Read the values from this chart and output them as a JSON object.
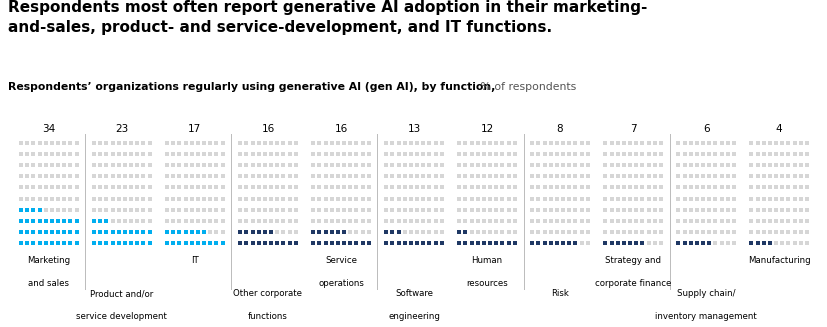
{
  "title_bold": "Respondents most often report generative AI adoption in their marketing-\nand-sales, product- and service-development, and IT functions.",
  "subtitle_bold": "Respondents’ organizations regularly using generative AI (gen AI), by function,",
  "subtitle_normal": " % of respondents",
  "values": [
    34,
    23,
    17,
    16,
    16,
    13,
    12,
    8,
    7,
    6,
    4
  ],
  "labels": [
    [
      "Marketing",
      "and sales"
    ],
    [
      "Product and/or",
      "service development"
    ],
    [
      "IT"
    ],
    [
      "Other corporate",
      "functions"
    ],
    [
      "Service",
      "operations"
    ],
    [
      "Software",
      "engineering"
    ],
    [
      "Human",
      "resources"
    ],
    [
      "Risk"
    ],
    [
      "Strategy and",
      "corporate finance"
    ],
    [
      "Supply chain/",
      "inventory management"
    ],
    [
      "Manufacturing"
    ]
  ],
  "label_row": [
    "bottom",
    "top",
    "bottom",
    "top",
    "bottom",
    "top",
    "bottom",
    "top",
    "bottom",
    "top",
    "bottom"
  ],
  "filled_colors": [
    "#00aeef",
    "#00aeef",
    "#00aeef",
    "#1f3864",
    "#1f3864",
    "#1f3864",
    "#1f3864",
    "#1f3864",
    "#1f3864",
    "#1f3864",
    "#1f3864"
  ],
  "empty_color": "#d6d6d6",
  "background_color": "#ffffff",
  "grid_cols": 10,
  "grid_rows": 10,
  "separator_after": [
    0,
    2,
    4,
    6,
    8
  ]
}
